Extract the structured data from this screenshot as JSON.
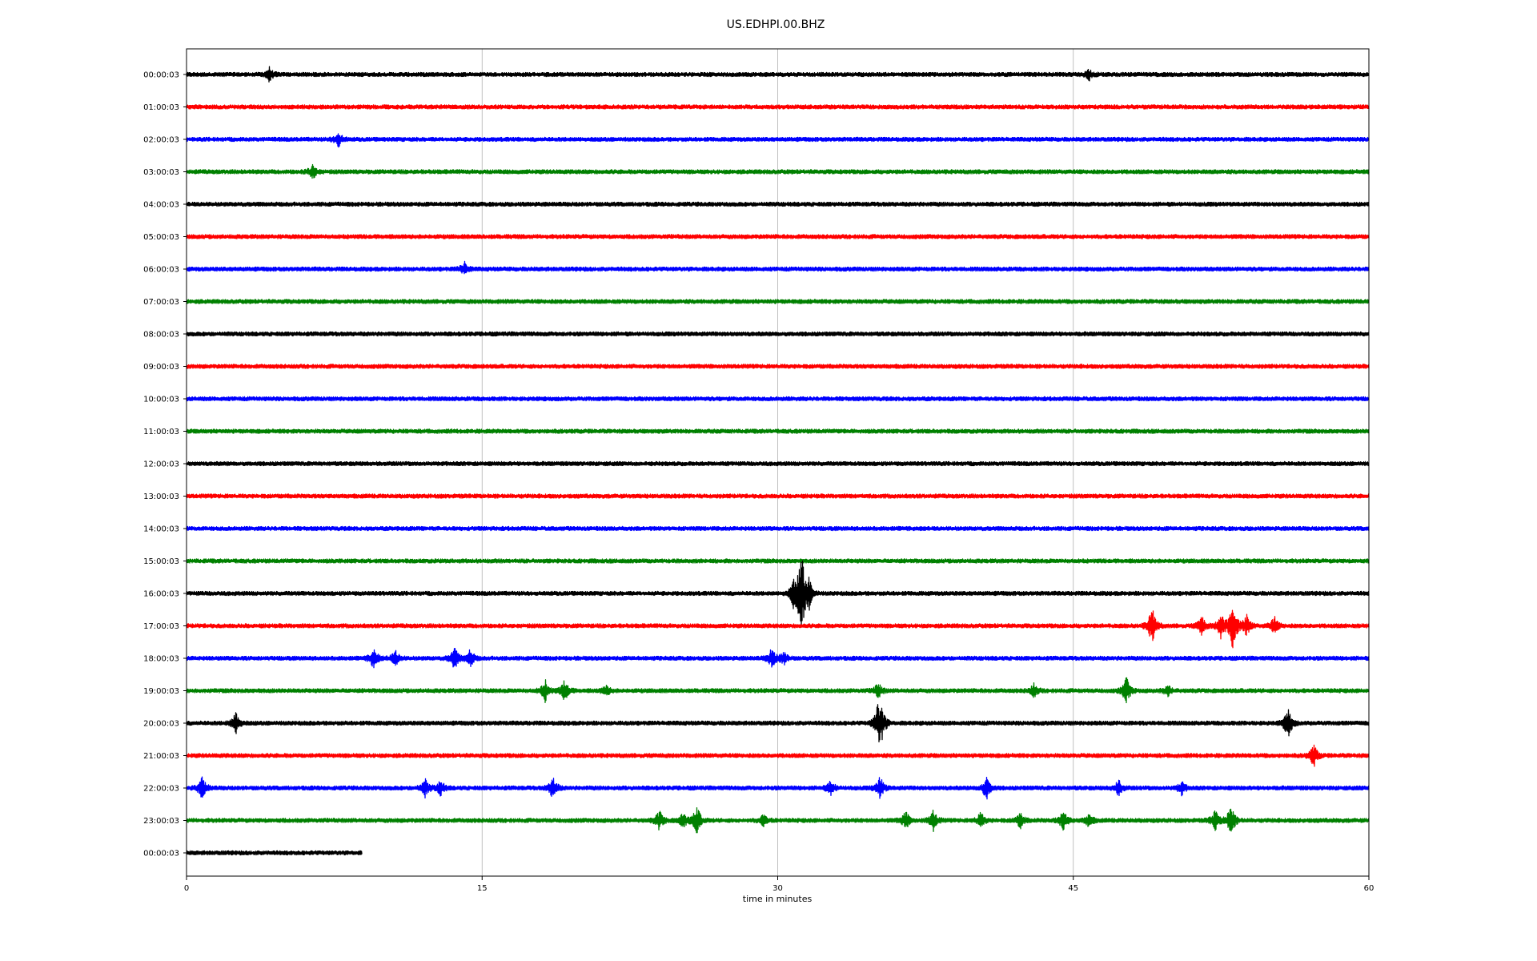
{
  "chart_data": {
    "type": "line",
    "title": "US.EDHPI.00.BHZ",
    "xlabel": "time in minutes",
    "ylabel": "",
    "xlim": [
      0,
      60
    ],
    "x_ticks": [
      0,
      15,
      30,
      45,
      60
    ],
    "grid": "vertical lines at x ticks",
    "trace_colors": [
      "#000000",
      "#ff0000",
      "#0000ff",
      "#008000"
    ],
    "rows": [
      {
        "label": "00:00:03",
        "end_minute": 60,
        "events": [
          {
            "t": 4.2,
            "amp": 0.5
          },
          {
            "t": 45.8,
            "amp": 0.4
          }
        ]
      },
      {
        "label": "01:00:03",
        "end_minute": 60,
        "events": []
      },
      {
        "label": "02:00:03",
        "end_minute": 60,
        "events": [
          {
            "t": 7.7,
            "amp": 0.6
          }
        ]
      },
      {
        "label": "03:00:03",
        "end_minute": 60,
        "events": [
          {
            "t": 6.4,
            "amp": 0.6
          }
        ]
      },
      {
        "label": "04:00:03",
        "end_minute": 60,
        "events": []
      },
      {
        "label": "05:00:03",
        "end_minute": 60,
        "events": []
      },
      {
        "label": "06:00:03",
        "end_minute": 60,
        "events": [
          {
            "t": 14.1,
            "amp": 0.5
          }
        ]
      },
      {
        "label": "07:00:03",
        "end_minute": 60,
        "events": []
      },
      {
        "label": "08:00:03",
        "end_minute": 60,
        "events": []
      },
      {
        "label": "09:00:03",
        "end_minute": 60,
        "events": []
      },
      {
        "label": "10:00:03",
        "end_minute": 60,
        "events": []
      },
      {
        "label": "11:00:03",
        "end_minute": 60,
        "events": []
      },
      {
        "label": "12:00:03",
        "end_minute": 60,
        "events": []
      },
      {
        "label": "13:00:03",
        "end_minute": 60,
        "events": []
      },
      {
        "label": "14:00:03",
        "end_minute": 60,
        "events": []
      },
      {
        "label": "15:00:03",
        "end_minute": 60,
        "events": []
      },
      {
        "label": "16:00:03",
        "end_minute": 60,
        "events": [
          {
            "t": 30.8,
            "amp": 1.0
          },
          {
            "t": 31.2,
            "amp": 3.8
          },
          {
            "t": 31.6,
            "amp": 1.0
          }
        ]
      },
      {
        "label": "17:00:03",
        "end_minute": 60,
        "events": [
          {
            "t": 49.0,
            "amp": 1.6
          },
          {
            "t": 51.5,
            "amp": 0.8
          },
          {
            "t": 52.5,
            "amp": 1.0
          },
          {
            "t": 53.1,
            "amp": 2.2
          },
          {
            "t": 53.8,
            "amp": 0.8
          },
          {
            "t": 55.2,
            "amp": 0.7
          }
        ]
      },
      {
        "label": "18:00:03",
        "end_minute": 60,
        "events": [
          {
            "t": 9.5,
            "amp": 0.8
          },
          {
            "t": 10.6,
            "amp": 0.6
          },
          {
            "t": 13.6,
            "amp": 0.9
          },
          {
            "t": 14.4,
            "amp": 0.7
          },
          {
            "t": 29.7,
            "amp": 0.8
          },
          {
            "t": 30.3,
            "amp": 0.5
          }
        ]
      },
      {
        "label": "19:00:03",
        "end_minute": 60,
        "events": [
          {
            "t": 18.2,
            "amp": 0.8
          },
          {
            "t": 19.2,
            "amp": 0.9
          },
          {
            "t": 21.3,
            "amp": 0.4
          },
          {
            "t": 35.1,
            "amp": 0.6
          },
          {
            "t": 43.0,
            "amp": 0.5
          },
          {
            "t": 47.7,
            "amp": 1.1
          },
          {
            "t": 49.8,
            "amp": 0.4
          }
        ]
      },
      {
        "label": "20:00:03",
        "end_minute": 60,
        "events": [
          {
            "t": 2.5,
            "amp": 0.9
          },
          {
            "t": 35.1,
            "amp": 1.6
          },
          {
            "t": 35.3,
            "amp": 0.9
          },
          {
            "t": 55.9,
            "amp": 1.3
          }
        ]
      },
      {
        "label": "21:00:03",
        "end_minute": 60,
        "events": [
          {
            "t": 57.2,
            "amp": 0.9
          }
        ]
      },
      {
        "label": "22:00:03",
        "end_minute": 60,
        "events": [
          {
            "t": 0.8,
            "amp": 0.9
          },
          {
            "t": 12.1,
            "amp": 0.7
          },
          {
            "t": 12.9,
            "amp": 0.6
          },
          {
            "t": 18.6,
            "amp": 0.9
          },
          {
            "t": 32.7,
            "amp": 0.6
          },
          {
            "t": 35.2,
            "amp": 0.9
          },
          {
            "t": 40.6,
            "amp": 1.0
          },
          {
            "t": 47.3,
            "amp": 0.6
          },
          {
            "t": 50.5,
            "amp": 0.5
          }
        ]
      },
      {
        "label": "23:00:03",
        "end_minute": 60,
        "events": [
          {
            "t": 24.0,
            "amp": 0.8
          },
          {
            "t": 25.2,
            "amp": 0.6
          },
          {
            "t": 25.9,
            "amp": 1.2
          },
          {
            "t": 29.3,
            "amp": 0.5
          },
          {
            "t": 36.5,
            "amp": 0.7
          },
          {
            "t": 37.9,
            "amp": 0.8
          },
          {
            "t": 40.3,
            "amp": 0.6
          },
          {
            "t": 42.3,
            "amp": 0.6
          },
          {
            "t": 44.5,
            "amp": 0.8
          },
          {
            "t": 45.8,
            "amp": 0.5
          },
          {
            "t": 52.2,
            "amp": 0.8
          },
          {
            "t": 53.0,
            "amp": 1.3
          }
        ]
      },
      {
        "label": "00:00:03",
        "end_minute": 8.9,
        "events": []
      }
    ]
  }
}
